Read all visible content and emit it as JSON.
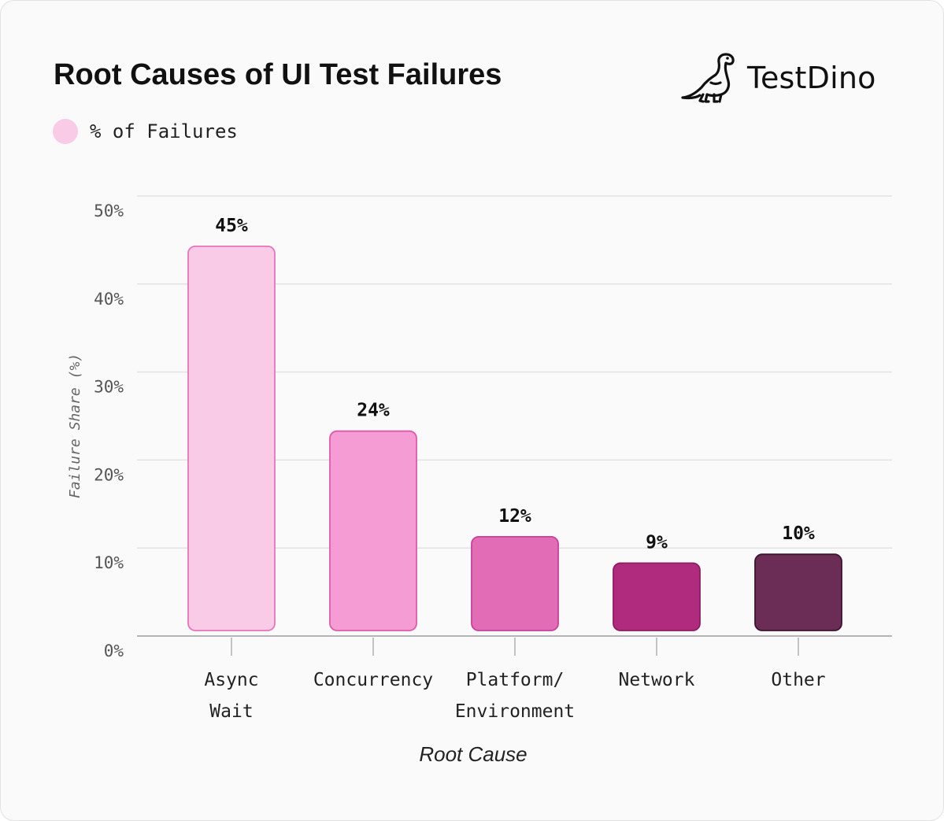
{
  "chart_data": {
    "type": "bar",
    "title": "Root Causes of UI Test Failures",
    "brand": "TestDino",
    "legend": [
      {
        "label": "% of Failures",
        "color": "#f9cbe6"
      }
    ],
    "categories": [
      [
        "Async",
        "Wait"
      ],
      [
        "Concurrency"
      ],
      [
        "Platform/",
        "Environment"
      ],
      [
        "Network"
      ],
      [
        "Other"
      ]
    ],
    "values": [
      45,
      24,
      12,
      9,
      10
    ],
    "data_labels": [
      "45%",
      "24%",
      "12%",
      "9%",
      "10%"
    ],
    "bar_fills": [
      "#f9cbe6",
      "#f59cd4",
      "#e26db6",
      "#b02a7e",
      "#6b2c55"
    ],
    "bar_strokes": [
      "#e874bb",
      "#df5aab",
      "#c8409a",
      "#8c1d63",
      "#3d1430"
    ],
    "xlabel": "Root Cause",
    "ylabel": "Failure Share (%)",
    "ylim": [
      0,
      50
    ],
    "yticks": [
      0,
      10,
      20,
      30,
      40,
      50
    ],
    "ytick_labels": [
      "0%",
      "10%",
      "20%",
      "30%",
      "40%",
      "50%"
    ],
    "grid": true,
    "legend_position": "top-left"
  }
}
